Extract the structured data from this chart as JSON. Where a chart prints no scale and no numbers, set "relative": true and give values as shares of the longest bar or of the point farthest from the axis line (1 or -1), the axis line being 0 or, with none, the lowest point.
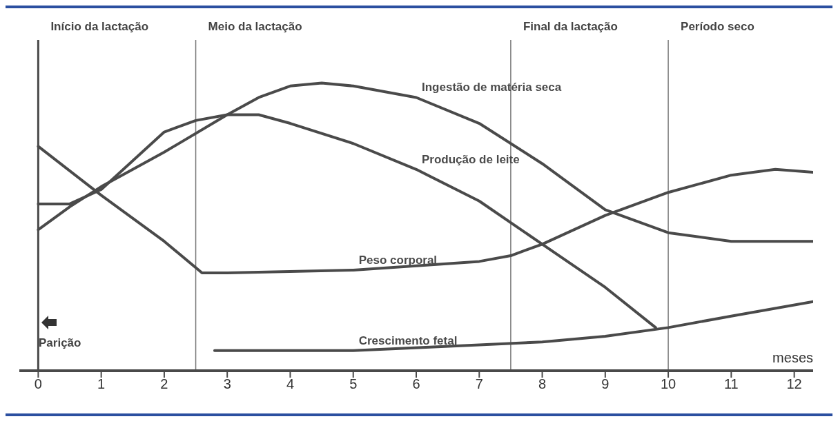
{
  "chart_data": {
    "type": "line",
    "relative": true,
    "xlabel": "meses",
    "xlim": [
      -0.3,
      12.3
    ],
    "xticks": [
      0,
      1,
      2,
      3,
      4,
      5,
      6,
      7,
      8,
      9,
      10,
      11,
      12
    ],
    "grid": false,
    "legend": false,
    "marker": "none",
    "line_style": "solid",
    "series": [
      {
        "name": "Ingestão de matéria seca",
        "color": "#4a4a4a",
        "x": [
          0,
          0.5,
          1,
          2,
          3,
          3.5,
          4,
          4.5,
          5,
          6,
          7,
          8,
          9,
          10,
          11,
          12.3
        ],
        "values": [
          0.49,
          0.57,
          0.64,
          0.76,
          0.89,
          0.95,
          0.99,
          1,
          0.99,
          0.95,
          0.86,
          0.72,
          0.56,
          0.48,
          0.45,
          0.45
        ]
      },
      {
        "name": "Produção de leite",
        "color": "#4a4a4a",
        "x": [
          0,
          0.5,
          1,
          2,
          2.5,
          3,
          3.5,
          4,
          5,
          6,
          7,
          8,
          9,
          9.8
        ],
        "values": [
          0.58,
          0.58,
          0.63,
          0.83,
          0.87,
          0.89,
          0.89,
          0.86,
          0.79,
          0.7,
          0.59,
          0.44,
          0.29,
          0.15
        ]
      },
      {
        "name": "Peso corporal",
        "color": "#4a4a4a",
        "x": [
          0,
          1,
          2,
          2.6,
          3,
          5,
          7,
          7.5,
          8,
          9,
          10,
          11,
          11.7,
          12.3
        ],
        "values": [
          0.78,
          0.61,
          0.45,
          0.34,
          0.34,
          0.35,
          0.38,
          0.4,
          0.44,
          0.54,
          0.62,
          0.68,
          0.7,
          0.69
        ]
      },
      {
        "name": "Crescimento fetal",
        "color": "#4a4a4a",
        "x": [
          2.8,
          5,
          7,
          8,
          9,
          10,
          11,
          12.3
        ],
        "values": [
          0.07,
          0.07,
          0.09,
          0.1,
          0.12,
          0.15,
          0.19,
          0.24
        ]
      }
    ],
    "ref_lines": [
      {
        "axis": "x",
        "value": 0,
        "color": "#4a4a4a",
        "label": "Início da lactação"
      },
      {
        "axis": "x",
        "value": 2.5,
        "color": "#777777",
        "label": "Meio da lactação"
      },
      {
        "axis": "x",
        "value": 7.5,
        "color": "#777777",
        "label": "Final da lactação"
      },
      {
        "axis": "x",
        "value": 10,
        "color": "#777777",
        "label": "Período seco"
      }
    ],
    "annotations": [
      "Parição"
    ]
  }
}
